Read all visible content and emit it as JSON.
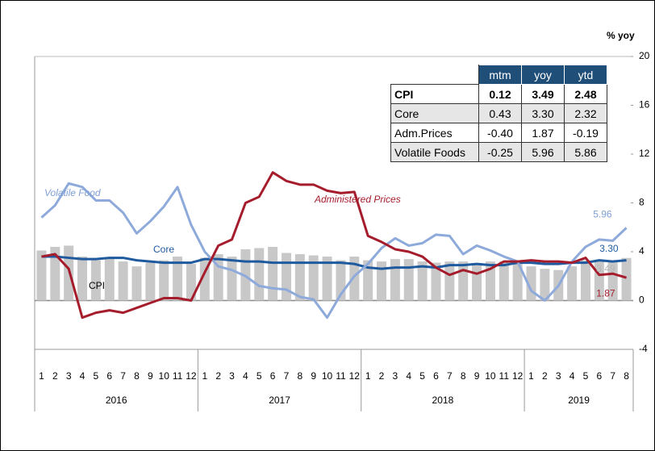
{
  "chart_data": {
    "type": "line",
    "y_axis_label": "% yoy",
    "categories": [
      "1",
      "2",
      "3",
      "4",
      "5",
      "6",
      "7",
      "8",
      "9",
      "10",
      "11",
      "12",
      "1",
      "2",
      "3",
      "4",
      "5",
      "6",
      "7",
      "8",
      "9",
      "10",
      "11",
      "12",
      "1",
      "2",
      "3",
      "4",
      "5",
      "6",
      "7",
      "8",
      "9",
      "10",
      "11",
      "12",
      "1",
      "2",
      "3",
      "4",
      "5",
      "6",
      "7",
      "8"
    ],
    "year_groups": [
      {
        "label": "2016",
        "count": 12
      },
      {
        "label": "2017",
        "count": 12
      },
      {
        "label": "2018",
        "count": 12
      },
      {
        "label": "2019",
        "count": 8
      }
    ],
    "ylim": [
      -4,
      20
    ],
    "yticks": [
      20,
      16,
      12,
      8,
      4,
      0,
      -4
    ],
    "series": [
      {
        "name": "CPI",
        "kind": "bar",
        "color": "#c8c8c8",
        "label_color": "#b5b5b5",
        "values": [
          4.1,
          4.4,
          4.5,
          3.6,
          3.3,
          3.5,
          3.2,
          2.8,
          3.1,
          3.3,
          3.6,
          3.0,
          3.5,
          3.8,
          3.6,
          4.2,
          4.3,
          4.4,
          3.9,
          3.8,
          3.7,
          3.6,
          3.3,
          3.6,
          3.3,
          3.2,
          3.4,
          3.4,
          3.2,
          3.1,
          3.2,
          3.2,
          2.9,
          3.2,
          3.2,
          3.1,
          2.8,
          2.6,
          2.5,
          2.8,
          3.3,
          3.3,
          3.3,
          3.49
        ],
        "value_labels": [
          null,
          null,
          null,
          null,
          null,
          null,
          null,
          null,
          null,
          null,
          null,
          null,
          null,
          null,
          null,
          null,
          null,
          null,
          null,
          null,
          null,
          null,
          null,
          null,
          null,
          null,
          null,
          null,
          null,
          null,
          null,
          null,
          null,
          null,
          null,
          null,
          null,
          null,
          null,
          null,
          null,
          null,
          null,
          "3.49"
        ]
      },
      {
        "name": "Core",
        "kind": "line",
        "color": "#1f5a9e",
        "label_color": "#1f5a9e",
        "values": [
          3.6,
          3.6,
          3.5,
          3.4,
          3.4,
          3.5,
          3.5,
          3.3,
          3.2,
          3.1,
          3.1,
          3.1,
          3.4,
          3.4,
          3.3,
          3.2,
          3.2,
          3.1,
          3.1,
          3.1,
          3.1,
          3.1,
          3.1,
          3.0,
          2.7,
          2.6,
          2.7,
          2.7,
          2.8,
          2.7,
          2.9,
          2.9,
          3.0,
          2.9,
          2.9,
          3.1,
          3.1,
          3.0,
          3.0,
          3.1,
          3.1,
          3.3,
          3.2,
          3.3
        ],
        "value_labels": [
          null,
          null,
          null,
          null,
          null,
          null,
          null,
          null,
          null,
          null,
          null,
          null,
          null,
          null,
          null,
          null,
          null,
          null,
          null,
          null,
          null,
          null,
          null,
          null,
          null,
          null,
          null,
          null,
          null,
          null,
          null,
          null,
          null,
          null,
          null,
          null,
          null,
          null,
          null,
          null,
          null,
          null,
          null,
          "3.30"
        ]
      },
      {
        "name": "Volatile Food",
        "kind": "line",
        "color": "#8eaadb",
        "label_color": "#7f9fd4",
        "values": [
          6.8,
          7.8,
          9.6,
          9.3,
          8.2,
          8.2,
          7.2,
          5.5,
          6.5,
          7.7,
          9.3,
          6.2,
          4.0,
          2.8,
          2.5,
          2.0,
          1.2,
          1.0,
          0.9,
          0.3,
          0.1,
          -1.4,
          0.5,
          2.0,
          3.0,
          4.3,
          5.1,
          4.5,
          4.7,
          5.4,
          5.3,
          3.8,
          4.5,
          4.1,
          3.6,
          3.2,
          0.8,
          0.0,
          1.2,
          3.2,
          4.4,
          5.0,
          4.9,
          5.96
        ],
        "value_labels": [
          null,
          null,
          null,
          null,
          null,
          null,
          null,
          null,
          null,
          null,
          null,
          null,
          null,
          null,
          null,
          null,
          null,
          null,
          null,
          null,
          null,
          null,
          null,
          null,
          null,
          null,
          null,
          null,
          null,
          null,
          null,
          null,
          null,
          null,
          null,
          null,
          null,
          null,
          null,
          null,
          null,
          null,
          null,
          "5.96"
        ]
      },
      {
        "name": "Administered Prices",
        "kind": "line",
        "color": "#a51d2d",
        "label_color": "#a51d2d",
        "values": [
          3.6,
          3.8,
          2.6,
          -1.4,
          -1.0,
          -0.8,
          -1.0,
          -0.6,
          -0.2,
          0.2,
          0.2,
          0.0,
          2.3,
          4.5,
          5.0,
          8.0,
          8.5,
          10.5,
          9.8,
          9.5,
          9.5,
          9.0,
          8.8,
          8.9,
          5.3,
          4.8,
          4.2,
          4.0,
          3.6,
          2.7,
          2.1,
          2.5,
          2.2,
          2.6,
          3.2,
          3.2,
          3.3,
          3.2,
          3.2,
          3.1,
          3.5,
          2.1,
          2.2,
          1.87
        ],
        "value_labels": [
          null,
          null,
          null,
          null,
          null,
          null,
          null,
          null,
          null,
          null,
          null,
          null,
          null,
          null,
          null,
          null,
          null,
          null,
          null,
          null,
          null,
          null,
          null,
          null,
          null,
          null,
          null,
          null,
          null,
          null,
          null,
          null,
          null,
          null,
          null,
          null,
          null,
          null,
          null,
          null,
          null,
          null,
          null,
          "1.87"
        ]
      }
    ]
  },
  "table": {
    "header": [
      "mtm",
      "yoy",
      "ytd"
    ],
    "rows": [
      [
        "CPI",
        "0.12",
        "3.49",
        "2.48"
      ],
      [
        "Core",
        "0.43",
        "3.30",
        "2.32"
      ],
      [
        "Adm.Prices",
        "-0.40",
        "1.87",
        "-0.19"
      ],
      [
        "Volatile Foods",
        "-0.25",
        "5.96",
        "5.86"
      ]
    ]
  }
}
